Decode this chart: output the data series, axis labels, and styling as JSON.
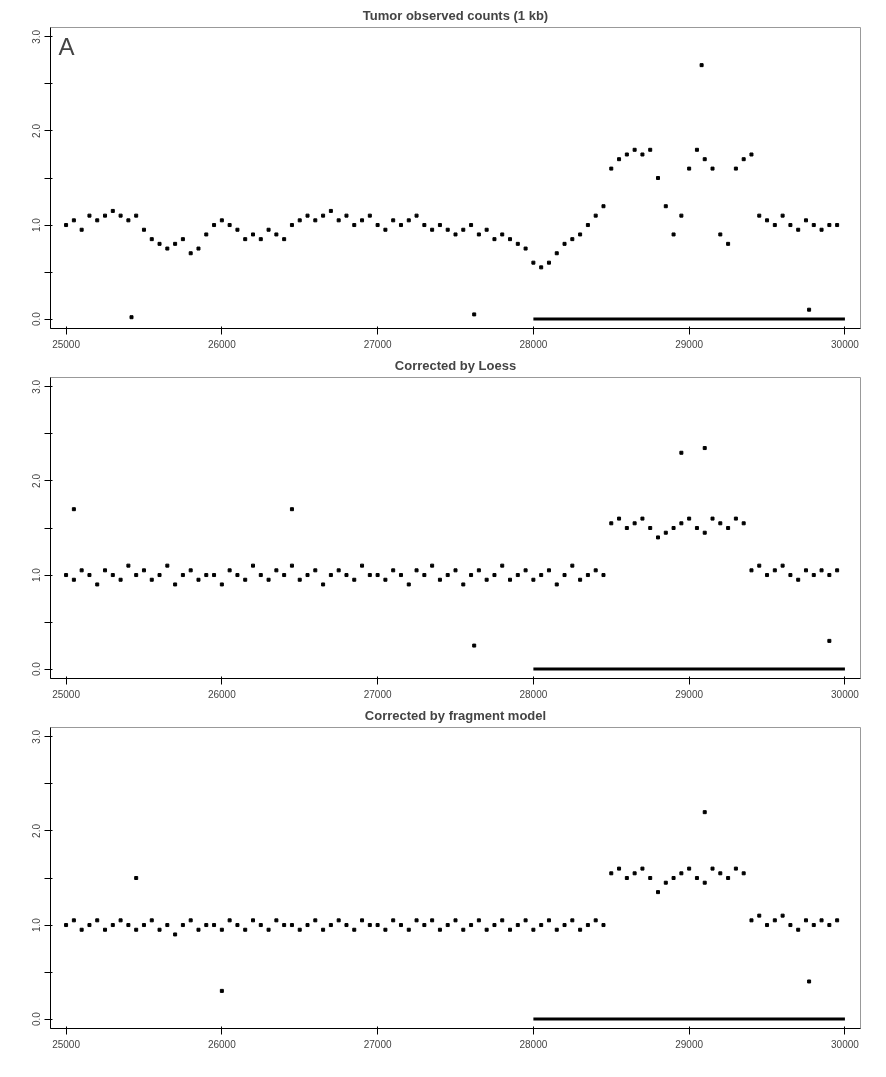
{
  "chart_data": [
    {
      "type": "scatter",
      "title": "Tumor observed counts (1 kb)",
      "annotations": [
        "A"
      ],
      "xlim": [
        24900,
        30100
      ],
      "ylim": [
        -0.1,
        3.1
      ],
      "xticks": [
        25000,
        26000,
        27000,
        28000,
        29000,
        30000
      ],
      "yticks": [
        {
          "value": 0,
          "label": "0.0"
        },
        {
          "value": 0.5,
          "label": null
        },
        {
          "value": 1,
          "label": "1.0"
        },
        {
          "value": 1.5,
          "label": null
        },
        {
          "value": 2,
          "label": "2.0"
        },
        {
          "value": 2.5,
          "label": null
        },
        {
          "value": 3,
          "label": "3.0"
        }
      ],
      "grid": false,
      "series": [
        {
          "color": "#000000",
          "marker": "square",
          "x": [
            25000,
            25050,
            25100,
            25150,
            25200,
            25250,
            25300,
            25350,
            25400,
            25450,
            25500,
            25550,
            25600,
            25650,
            25700,
            25750,
            25800,
            25850,
            25900,
            25950,
            26000,
            26050,
            26100,
            26150,
            26200,
            26250,
            26300,
            26350,
            26400,
            26450,
            26500,
            26550,
            26600,
            26650,
            26700,
            26750,
            26800,
            26850,
            26900,
            26950,
            27000,
            27050,
            27100,
            27150,
            27200,
            27250,
            27300,
            27350,
            27400,
            27450,
            27500,
            27550,
            27600,
            27650,
            27700,
            27750,
            27800,
            27850,
            27900,
            27950,
            28000,
            28050,
            28100,
            28150,
            28200,
            28250,
            28300,
            28350,
            28400,
            28450,
            28500,
            28550,
            28600,
            28650,
            28700,
            28750,
            28800,
            28850,
            28900,
            28950,
            29000,
            29050,
            29100,
            29150,
            29200,
            29250,
            29300,
            29350,
            29400,
            29450,
            29500,
            29550,
            29600,
            29650,
            29700,
            29750,
            29800,
            29850,
            29900,
            29950,
            29080,
            25420,
            27620,
            29770
          ],
          "values": [
            1.0,
            1.05,
            0.95,
            1.1,
            1.05,
            1.1,
            1.15,
            1.1,
            1.05,
            1.1,
            0.95,
            0.85,
            0.8,
            0.75,
            0.8,
            0.85,
            0.7,
            0.75,
            0.9,
            1.0,
            1.05,
            1.0,
            0.95,
            0.85,
            0.9,
            0.85,
            0.95,
            0.9,
            0.85,
            1.0,
            1.05,
            1.1,
            1.05,
            1.1,
            1.15,
            1.05,
            1.1,
            1.0,
            1.05,
            1.1,
            1.0,
            0.95,
            1.05,
            1.0,
            1.05,
            1.1,
            1.0,
            0.95,
            1.0,
            0.95,
            0.9,
            0.95,
            1.0,
            0.9,
            0.95,
            0.85,
            0.9,
            0.85,
            0.8,
            0.75,
            0.6,
            0.55,
            0.6,
            0.7,
            0.8,
            0.85,
            0.9,
            1.0,
            1.1,
            1.2,
            1.6,
            1.7,
            1.75,
            1.8,
            1.75,
            1.8,
            1.5,
            1.2,
            0.9,
            1.1,
            1.6,
            1.8,
            1.7,
            1.6,
            0.9,
            0.8,
            1.6,
            1.7,
            1.75,
            1.1,
            1.05,
            1.0,
            1.1,
            1.0,
            0.95,
            1.05,
            1.0,
            0.95,
            1.0,
            1.0,
            2.7,
            0.02,
            0.05,
            0.1
          ]
        },
        {
          "type": "line",
          "color": "#000000",
          "x": [
            28000,
            30000
          ],
          "values": [
            0,
            0
          ]
        }
      ]
    },
    {
      "type": "scatter",
      "title": "Corrected by Loess",
      "xlim": [
        24900,
        30100
      ],
      "ylim": [
        -0.1,
        3.1
      ],
      "xticks": [
        25000,
        26000,
        27000,
        28000,
        29000,
        30000
      ],
      "yticks": [
        {
          "value": 0,
          "label": "0.0"
        },
        {
          "value": 0.5,
          "label": null
        },
        {
          "value": 1,
          "label": "1.0"
        },
        {
          "value": 1.5,
          "label": null
        },
        {
          "value": 2,
          "label": "2.0"
        },
        {
          "value": 2.5,
          "label": null
        },
        {
          "value": 3,
          "label": "3.0"
        }
      ],
      "grid": false,
      "series": [
        {
          "color": "#000000",
          "marker": "square",
          "x": [
            25000,
            25050,
            25100,
            25150,
            25200,
            25250,
            25300,
            25350,
            25400,
            25450,
            25500,
            25550,
            25600,
            25650,
            25700,
            25750,
            25800,
            25850,
            25900,
            25950,
            26000,
            26050,
            26100,
            26150,
            26200,
            26250,
            26300,
            26350,
            26400,
            26450,
            26500,
            26550,
            26600,
            26650,
            26700,
            26750,
            26800,
            26850,
            26900,
            26950,
            27000,
            27050,
            27100,
            27150,
            27200,
            27250,
            27300,
            27350,
            27400,
            27450,
            27500,
            27550,
            27600,
            27650,
            27700,
            27750,
            27800,
            27850,
            27900,
            27950,
            28000,
            28050,
            28100,
            28150,
            28200,
            28250,
            28300,
            28350,
            28400,
            28450,
            28500,
            28550,
            28600,
            28650,
            28700,
            28750,
            28800,
            28850,
            28900,
            28950,
            29000,
            29050,
            29100,
            29150,
            29200,
            29250,
            29300,
            29350,
            29400,
            29450,
            29500,
            29550,
            29600,
            29650,
            29700,
            29750,
            29800,
            29850,
            29900,
            29950,
            25050,
            26450,
            29100,
            28950,
            27620,
            29900
          ],
          "values": [
            1.0,
            0.95,
            1.05,
            1.0,
            0.9,
            1.05,
            1.0,
            0.95,
            1.1,
            1.0,
            1.05,
            0.95,
            1.0,
            1.1,
            0.9,
            1.0,
            1.05,
            0.95,
            1.0,
            1.0,
            0.9,
            1.05,
            1.0,
            0.95,
            1.1,
            1.0,
            0.95,
            1.05,
            1.0,
            1.1,
            0.95,
            1.0,
            1.05,
            0.9,
            1.0,
            1.05,
            1.0,
            0.95,
            1.1,
            1.0,
            1.0,
            0.95,
            1.05,
            1.0,
            0.9,
            1.05,
            1.0,
            1.1,
            0.95,
            1.0,
            1.05,
            0.9,
            1.0,
            1.05,
            0.95,
            1.0,
            1.1,
            0.95,
            1.0,
            1.05,
            0.95,
            1.0,
            1.05,
            0.9,
            1.0,
            1.1,
            0.95,
            1.0,
            1.05,
            1.0,
            1.55,
            1.6,
            1.5,
            1.55,
            1.6,
            1.5,
            1.4,
            1.45,
            1.5,
            1.55,
            1.6,
            1.5,
            1.45,
            1.6,
            1.55,
            1.5,
            1.6,
            1.55,
            1.05,
            1.1,
            1.0,
            1.05,
            1.1,
            1.0,
            0.95,
            1.05,
            1.0,
            1.05,
            1.0,
            1.05,
            1.7,
            1.7,
            2.35,
            2.3,
            0.25,
            0.3
          ]
        },
        {
          "type": "line",
          "color": "#000000",
          "x": [
            28000,
            30000
          ],
          "values": [
            0,
            0
          ]
        }
      ]
    },
    {
      "type": "scatter",
      "title": "Corrected by fragment model",
      "xlim": [
        24900,
        30100
      ],
      "ylim": [
        -0.1,
        3.1
      ],
      "xticks": [
        25000,
        26000,
        27000,
        28000,
        29000,
        30000
      ],
      "yticks": [
        {
          "value": 0,
          "label": "0.0"
        },
        {
          "value": 0.5,
          "label": null
        },
        {
          "value": 1,
          "label": "1.0"
        },
        {
          "value": 1.5,
          "label": null
        },
        {
          "value": 2,
          "label": "2.0"
        },
        {
          "value": 2.5,
          "label": null
        },
        {
          "value": 3,
          "label": "3.0"
        }
      ],
      "grid": false,
      "series": [
        {
          "color": "#000000",
          "marker": "square",
          "x": [
            25000,
            25050,
            25100,
            25150,
            25200,
            25250,
            25300,
            25350,
            25400,
            25450,
            25500,
            25550,
            25600,
            25650,
            25700,
            25750,
            25800,
            25850,
            25900,
            25950,
            26000,
            26050,
            26100,
            26150,
            26200,
            26250,
            26300,
            26350,
            26400,
            26450,
            26500,
            26550,
            26600,
            26650,
            26700,
            26750,
            26800,
            26850,
            26900,
            26950,
            27000,
            27050,
            27100,
            27150,
            27200,
            27250,
            27300,
            27350,
            27400,
            27450,
            27500,
            27550,
            27600,
            27650,
            27700,
            27750,
            27800,
            27850,
            27900,
            27950,
            28000,
            28050,
            28100,
            28150,
            28200,
            28250,
            28300,
            28350,
            28400,
            28450,
            28500,
            28550,
            28600,
            28650,
            28700,
            28750,
            28800,
            28850,
            28900,
            28950,
            29000,
            29050,
            29100,
            29150,
            29200,
            29250,
            29300,
            29350,
            29400,
            29450,
            29500,
            29550,
            29600,
            29650,
            29700,
            29750,
            29800,
            29850,
            29900,
            29950,
            29100,
            26000,
            29770,
            25450
          ],
          "values": [
            1.0,
            1.05,
            0.95,
            1.0,
            1.05,
            0.95,
            1.0,
            1.05,
            1.0,
            0.95,
            1.0,
            1.05,
            0.95,
            1.0,
            0.9,
            1.0,
            1.05,
            0.95,
            1.0,
            1.0,
            0.95,
            1.05,
            1.0,
            0.95,
            1.05,
            1.0,
            0.95,
            1.05,
            1.0,
            1.0,
            0.95,
            1.0,
            1.05,
            0.95,
            1.0,
            1.05,
            1.0,
            0.95,
            1.05,
            1.0,
            1.0,
            0.95,
            1.05,
            1.0,
            0.95,
            1.05,
            1.0,
            1.05,
            0.95,
            1.0,
            1.05,
            0.95,
            1.0,
            1.05,
            0.95,
            1.0,
            1.05,
            0.95,
            1.0,
            1.05,
            0.95,
            1.0,
            1.05,
            0.95,
            1.0,
            1.05,
            0.95,
            1.0,
            1.05,
            1.0,
            1.55,
            1.6,
            1.5,
            1.55,
            1.6,
            1.5,
            1.35,
            1.45,
            1.5,
            1.55,
            1.6,
            1.5,
            1.45,
            1.6,
            1.55,
            1.5,
            1.6,
            1.55,
            1.05,
            1.1,
            1.0,
            1.05,
            1.1,
            1.0,
            0.95,
            1.05,
            1.0,
            1.05,
            1.0,
            1.05,
            2.2,
            0.3,
            0.4,
            1.5
          ]
        },
        {
          "type": "line",
          "color": "#000000",
          "x": [
            28000,
            30000
          ],
          "values": [
            0,
            0
          ]
        }
      ]
    }
  ]
}
